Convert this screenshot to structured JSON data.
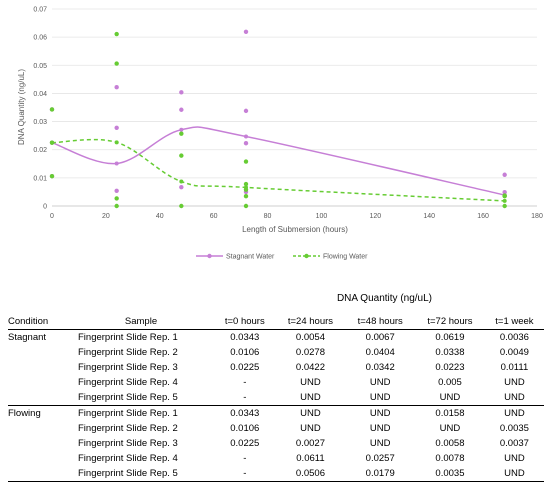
{
  "chart_data": {
    "type": "scatter",
    "xlabel": "Length of Submersion (hours)",
    "ylabel": "DNA Quantity (ng/uL)",
    "xlim": [
      0,
      180
    ],
    "ylim": [
      0,
      0.07
    ],
    "x_ticks": [
      "0",
      "20",
      "40",
      "60",
      "80",
      "100",
      "120",
      "140",
      "160",
      "180"
    ],
    "y_ticks": [
      "0",
      "0.01",
      "0.02",
      "0.03",
      "0.04",
      "0.05",
      "0.06",
      "0.07"
    ],
    "grid": "horizontal",
    "legend_position": "bottom",
    "series": [
      {
        "name": "Stagnant Water",
        "color": "#c67fd6",
        "line_style": "solid",
        "points": [
          {
            "x": 0,
            "y": 0.0343
          },
          {
            "x": 0,
            "y": 0.0106
          },
          {
            "x": 0,
            "y": 0.0225
          },
          {
            "x": 24,
            "y": 0.0054
          },
          {
            "x": 24,
            "y": 0.0278
          },
          {
            "x": 24,
            "y": 0.0422
          },
          {
            "x": 48,
            "y": 0.0067
          },
          {
            "x": 48,
            "y": 0.0404
          },
          {
            "x": 48,
            "y": 0.0342
          },
          {
            "x": 72,
            "y": 0.0619
          },
          {
            "x": 72,
            "y": 0.0338
          },
          {
            "x": 72,
            "y": 0.0223
          },
          {
            "x": 72,
            "y": 0.005
          },
          {
            "x": 168,
            "y": 0.0036
          },
          {
            "x": 168,
            "y": 0.0049
          },
          {
            "x": 168,
            "y": 0.0111
          }
        ],
        "trend": [
          {
            "x": 0,
            "y": 0.0225
          },
          {
            "x": 24,
            "y": 0.0151
          },
          {
            "x": 48,
            "y": 0.0271
          },
          {
            "x": 72,
            "y": 0.0247
          },
          {
            "x": 168,
            "y": 0.0039
          }
        ]
      },
      {
        "name": "Flowing Water",
        "color": "#66cc33",
        "line_style": "dashed",
        "points": [
          {
            "x": 0,
            "y": 0.0343
          },
          {
            "x": 0,
            "y": 0.0106
          },
          {
            "x": 0,
            "y": 0.0225
          },
          {
            "x": 24,
            "y": 0.0027
          },
          {
            "x": 24,
            "y": 0.0611
          },
          {
            "x": 24,
            "y": 0.0506
          },
          {
            "x": 48,
            "y": 0.0257
          },
          {
            "x": 48,
            "y": 0.0179
          },
          {
            "x": 72,
            "y": 0.0158
          },
          {
            "x": 72,
            "y": 0.0058
          },
          {
            "x": 72,
            "y": 0.0078
          },
          {
            "x": 72,
            "y": 0.0035
          },
          {
            "x": 168,
            "y": 0.0035
          },
          {
            "x": 168,
            "y": 0.0037
          },
          {
            "x": 24,
            "y": 0
          },
          {
            "x": 48,
            "y": 0
          },
          {
            "x": 72,
            "y": 0
          },
          {
            "x": 168,
            "y": 0
          }
        ],
        "trend": [
          {
            "x": 0,
            "y": 0.0225
          },
          {
            "x": 24,
            "y": 0.0226
          },
          {
            "x": 48,
            "y": 0.0087
          },
          {
            "x": 72,
            "y": 0.0066
          },
          {
            "x": 168,
            "y": 0.0018
          }
        ]
      }
    ]
  },
  "table": {
    "header_group": "DNA Quantity (ng/uL)",
    "columns": [
      "Condition",
      "Sample",
      "t=0 hours",
      "t=24 hours",
      "t=48 hours",
      "t=72 hours",
      "t=1 week"
    ],
    "rows": [
      {
        "condition": "Stagnant",
        "sample": "Fingerprint Slide Rep. 1",
        "t0": "0.0343",
        "t24": "0.0054",
        "t48": "0.0067",
        "t72": "0.0619",
        "t1w": "0.0036"
      },
      {
        "condition": "",
        "sample": "Fingerprint Slide Rep. 2",
        "t0": "0.0106",
        "t24": "0.0278",
        "t48": "0.0404",
        "t72": "0.0338",
        "t1w": "0.0049"
      },
      {
        "condition": "",
        "sample": "Fingerprint Slide Rep. 3",
        "t0": "0.0225",
        "t24": "0.0422",
        "t48": "0.0342",
        "t72": "0.0223",
        "t1w": "0.0111"
      },
      {
        "condition": "",
        "sample": "Fingerprint Slide Rep. 4",
        "t0": "-",
        "t24": "UND",
        "t48": "UND",
        "t72": "0.005",
        "t1w": "UND"
      },
      {
        "condition": "",
        "sample": "Fingerprint Slide Rep. 5",
        "t0": "-",
        "t24": "UND",
        "t48": "UND",
        "t72": "UND",
        "t1w": "UND"
      },
      {
        "condition": "Flowing",
        "sample": "Fingerprint Slide Rep. 1",
        "t0": "0.0343",
        "t24": "UND",
        "t48": "UND",
        "t72": "0.0158",
        "t1w": "UND"
      },
      {
        "condition": "",
        "sample": "Fingerprint Slide Rep. 2",
        "t0": "0.0106",
        "t24": "UND",
        "t48": "UND",
        "t72": "UND",
        "t1w": "0.0035"
      },
      {
        "condition": "",
        "sample": "Fingerprint Slide Rep. 3",
        "t0": "0.0225",
        "t24": "0.0027",
        "t48": "UND",
        "t72": "0.0058",
        "t1w": "0.0037"
      },
      {
        "condition": "",
        "sample": "Fingerprint Slide Rep. 4",
        "t0": "-",
        "t24": "0.0611",
        "t48": "0.0257",
        "t72": "0.0078",
        "t1w": "UND"
      },
      {
        "condition": "",
        "sample": "Fingerprint Slide Rep. 5",
        "t0": "-",
        "t24": "0.0506",
        "t48": "0.0179",
        "t72": "0.0035",
        "t1w": "UND"
      }
    ]
  }
}
